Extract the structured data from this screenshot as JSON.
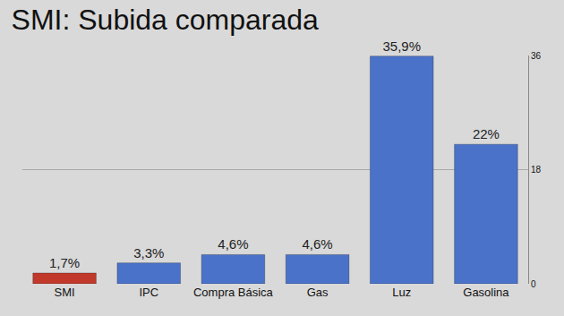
{
  "chart_data": {
    "type": "bar",
    "title": "SMI: Subida comparada",
    "categories": [
      "SMI",
      "IPC",
      "Compra Básica",
      "Gas",
      "Luz",
      "Gasolina"
    ],
    "values": [
      1.7,
      3.3,
      4.6,
      4.6,
      35.9,
      22
    ],
    "value_labels": [
      "1,7%",
      "3,3%",
      "4,6%",
      "4,6%",
      "35,9%",
      "22%"
    ],
    "colors": [
      "#c0392b",
      "#4a72c8",
      "#4a72c8",
      "#4a72c8",
      "#4a72c8",
      "#4a72c8"
    ],
    "data_labels": true,
    "ylim": [
      0,
      36
    ],
    "yticks": [
      0,
      18,
      36
    ],
    "grid": true
  }
}
